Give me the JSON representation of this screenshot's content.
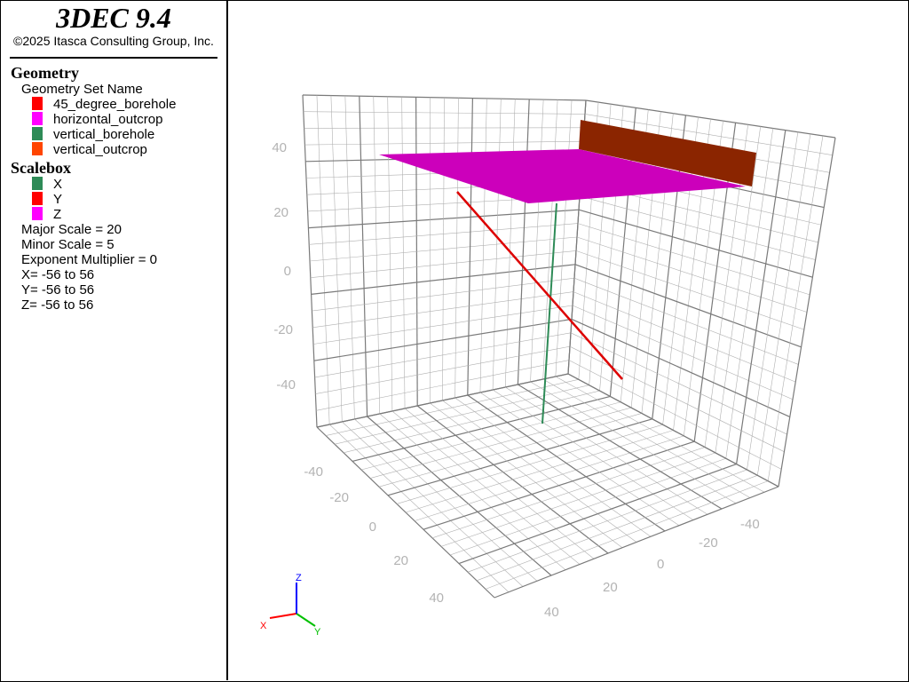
{
  "app": {
    "title": "3DEC 9.4",
    "copyright": "©2025 Itasca Consulting Group, Inc."
  },
  "legend": {
    "geometry_title": "Geometry",
    "geometry_set_label": "Geometry Set Name",
    "geometry_items": [
      {
        "label": "45_degree_borehole",
        "color": "#ff0000"
      },
      {
        "label": "horizontal_outcrop",
        "color": "#ff00ff"
      },
      {
        "label": "vertical_borehole",
        "color": "#2e8b57"
      },
      {
        "label": "vertical_outcrop",
        "color": "#ff4500"
      }
    ],
    "scalebox_title": "Scalebox",
    "scalebox_items": [
      {
        "label": "X",
        "color": "#2e8b57"
      },
      {
        "label": "Y",
        "color": "#ff0000"
      },
      {
        "label": "Z",
        "color": "#ff00ff"
      }
    ],
    "major_scale": "Major Scale = 20",
    "minor_scale": "Minor Scale = 5",
    "exponent": "Exponent Multiplier = 0",
    "x_range": "X= -56 to 56",
    "y_range": "Y= -56 to 56",
    "z_range": "Z= -56 to 56"
  },
  "axis_ticks": {
    "z": [
      "40",
      "20",
      "0",
      "-20",
      "-40"
    ],
    "front": [
      "-40",
      "-20",
      "0",
      "20",
      "40"
    ],
    "right": [
      "-40",
      "-20",
      "0",
      "20",
      "40"
    ]
  },
  "triad": {
    "x": "X",
    "y": "Y",
    "z": "Z",
    "x_color": "#ff0000",
    "y_color": "#00c000",
    "z_color": "#0000ff"
  },
  "plot_colors": {
    "horizontal_outcrop": "#cc00bb",
    "vertical_outcrop": "#8b2500",
    "borehole_45": "#dd0000",
    "borehole_vertical": "#2e8b57",
    "grid": "#b0b0b0",
    "grid_major": "#7a7a7a"
  }
}
